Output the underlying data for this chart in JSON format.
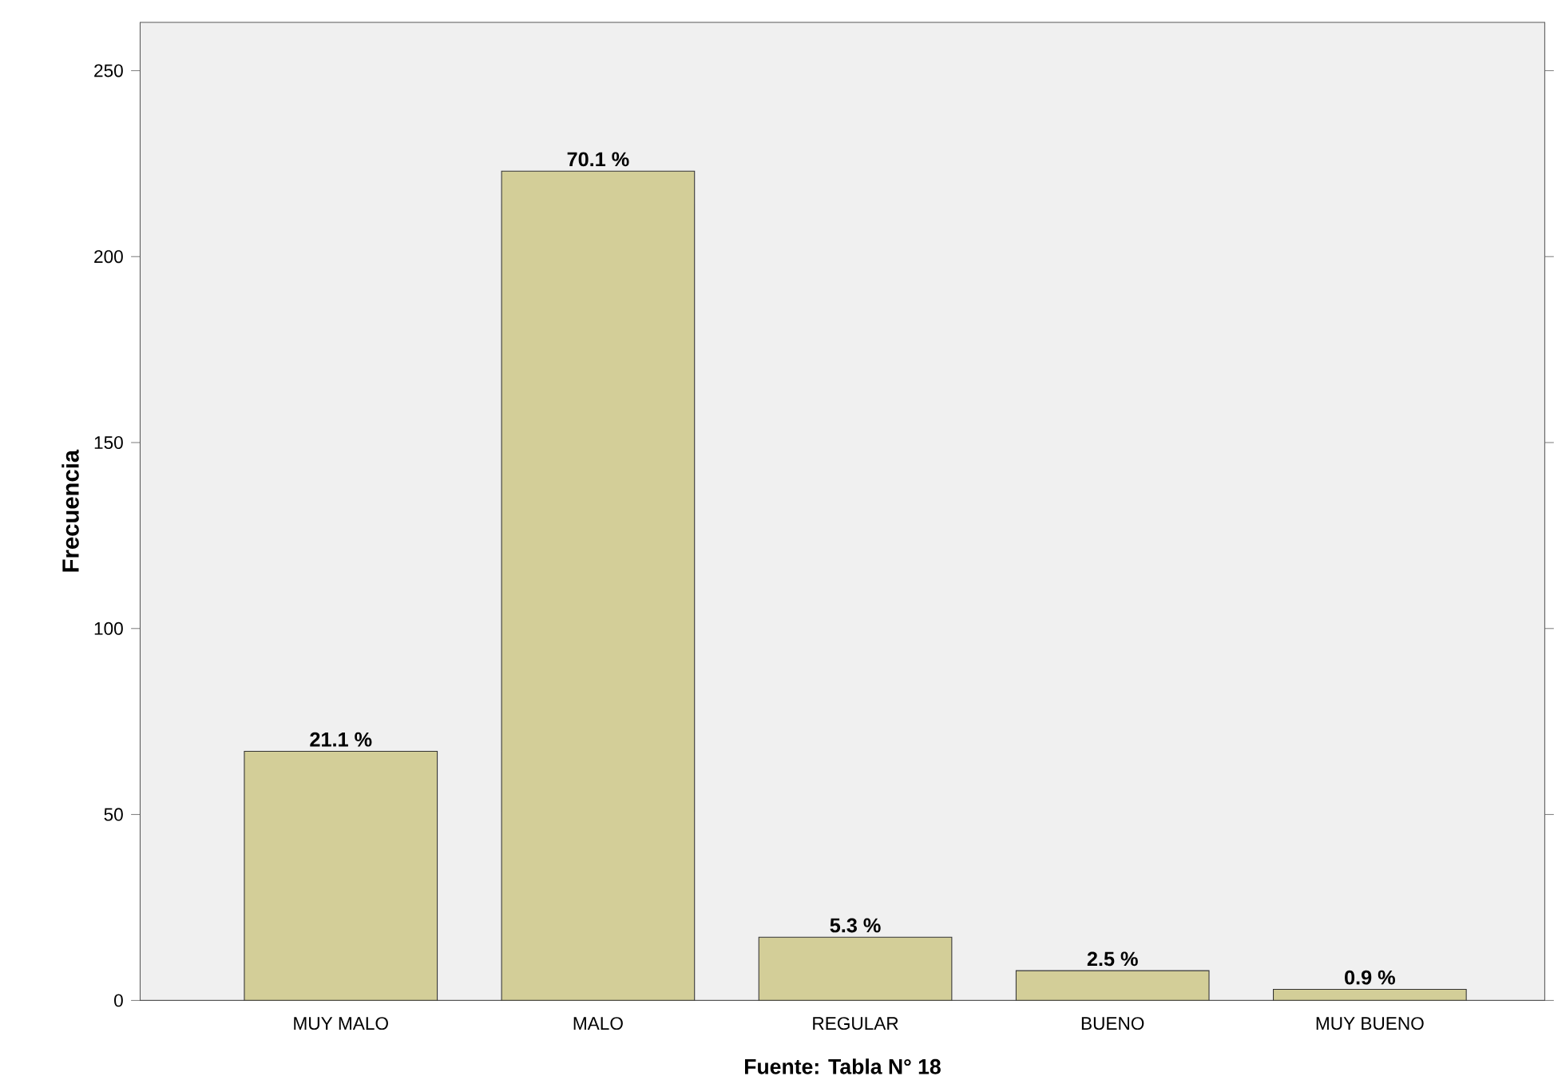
{
  "chart_data": {
    "type": "bar",
    "categories": [
      "MUY MALO",
      "MALO",
      "REGULAR",
      "BUENO",
      "MUY BUENO"
    ],
    "values": [
      67,
      223,
      17,
      8,
      3
    ],
    "color": "#d3ce98",
    "ylabel": "Frecuencia",
    "ylim": [
      0,
      263
    ],
    "yticks": [
      0,
      50,
      100,
      150,
      200,
      250
    ],
    "grid": false,
    "annotations": [
      {
        "text": "21.1 %",
        "x": "MUY MALO",
        "y": 67
      },
      {
        "text": "70.1 %",
        "x": "MALO",
        "y": 223
      },
      {
        "text": "5.3 %",
        "x": "REGULAR",
        "y": 17
      },
      {
        "text": "2.5 %",
        "x": "BUENO",
        "y": 8
      },
      {
        "text": "0.9 %",
        "x": "MUY BUENO",
        "y": 3
      },
      "Fuente: Tabla N° 18"
    ]
  }
}
